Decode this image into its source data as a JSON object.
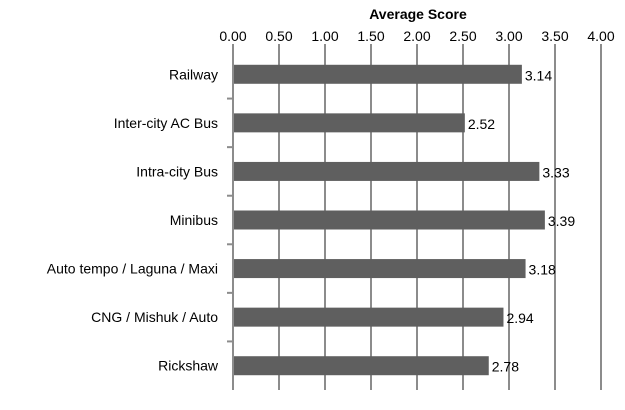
{
  "chart_data": {
    "type": "bar",
    "orientation": "horizontal",
    "title": "",
    "xlabel": "Average Score",
    "ylabel": "",
    "categories": [
      "Railway",
      "Inter-city AC Bus",
      "Intra-city Bus",
      "Minibus",
      "Auto tempo / Laguna / Maxi",
      "CNG / Mishuk / Auto",
      "Rickshaw"
    ],
    "values": [
      3.14,
      2.52,
      3.33,
      3.39,
      3.18,
      2.94,
      2.78
    ],
    "data_labels": [
      "3.14",
      "2.52",
      "3.33",
      "3.39",
      "3.18",
      "2.94",
      "2.78"
    ],
    "xlim": [
      0,
      4
    ],
    "x_ticks": [
      "0.00",
      "0.50",
      "1.00",
      "1.50",
      "2.00",
      "2.50",
      "3.00",
      "3.50",
      "4.00"
    ],
    "x_axis_position": "top",
    "grid": "vertical",
    "legend": "none",
    "bar_color": "#5f5f5f",
    "grid_color": "#8c8c8c"
  }
}
